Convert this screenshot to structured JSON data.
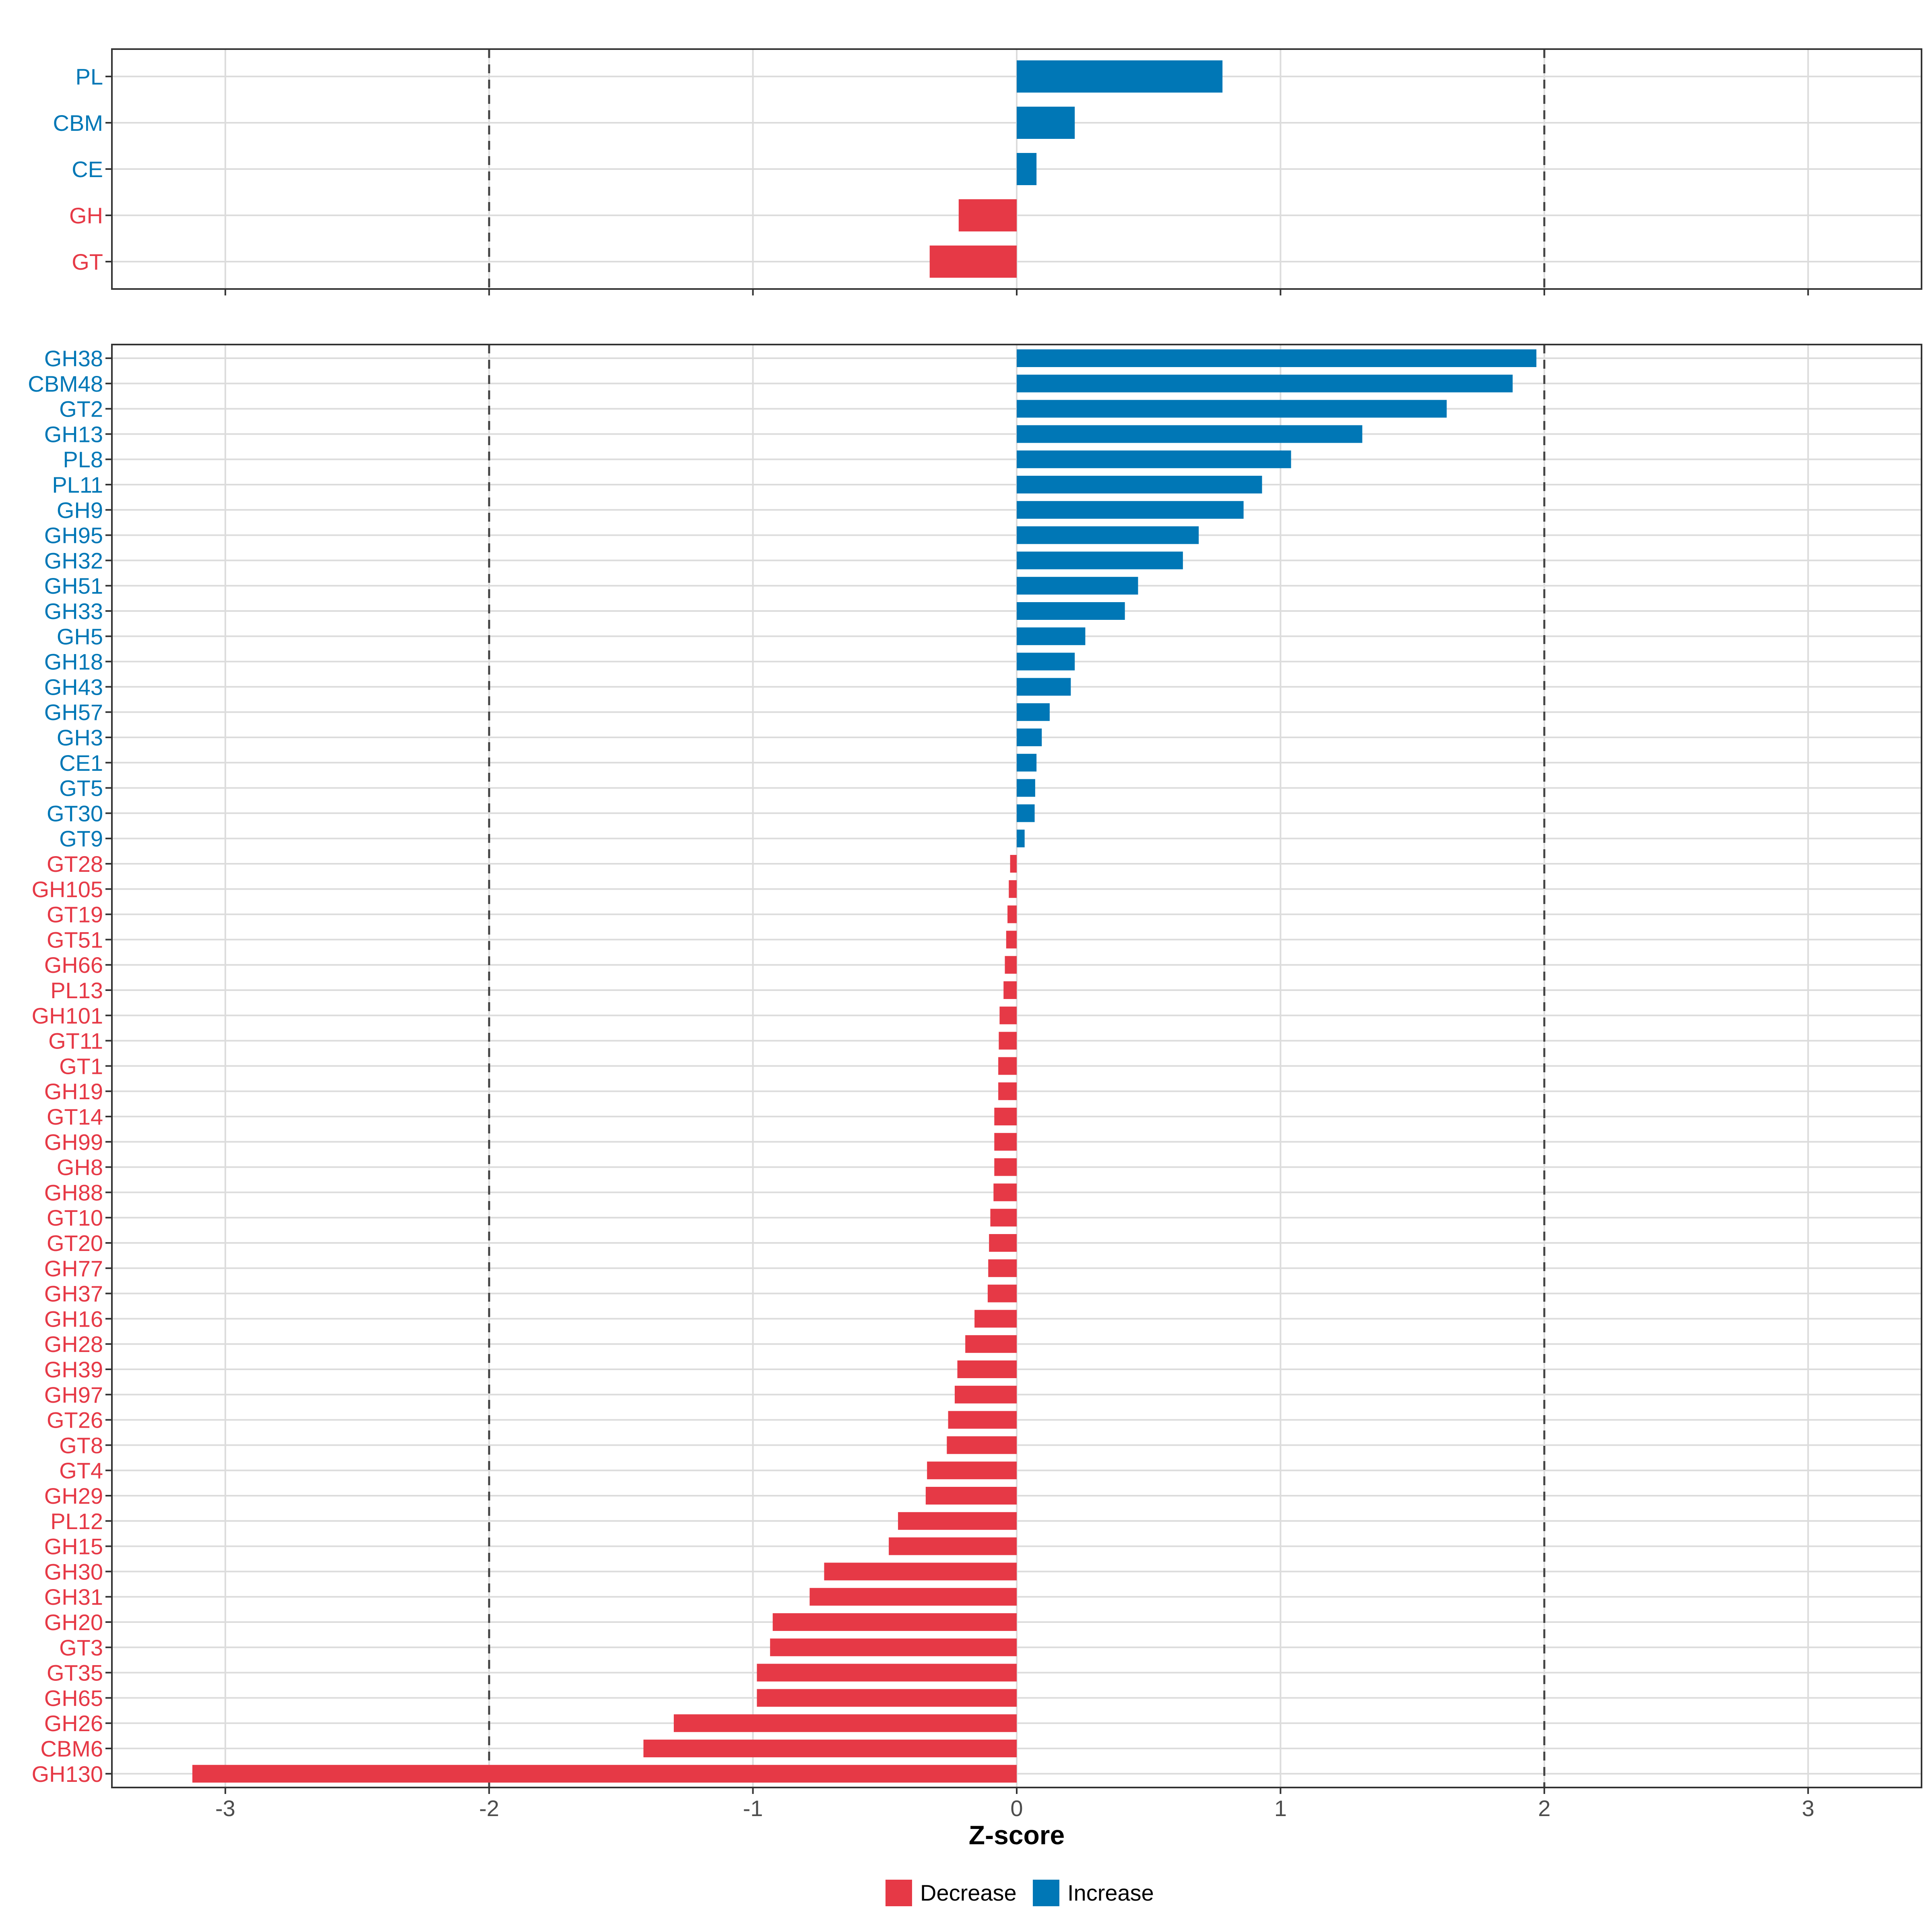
{
  "chart_data": {
    "type": "bar",
    "orientation": "horizontal",
    "xlabel": "Z-score",
    "xlim": [
      -3.43,
      3.43
    ],
    "xticks": [
      -3,
      -2,
      -1,
      0,
      1,
      2,
      3
    ],
    "xtick_labels": [
      "-3",
      "-2",
      "-1",
      "0",
      "1",
      "2",
      "3"
    ],
    "reference_lines": [
      -2,
      2
    ],
    "colors": {
      "Decrease": "#e63946",
      "Increase": "#0077b6"
    },
    "legend": {
      "position": "bottom",
      "entries": [
        "Decrease",
        "Increase"
      ]
    },
    "panels": [
      {
        "name": "class",
        "categories": [
          "PL",
          "CBM",
          "CE",
          "GH",
          "GT"
        ],
        "values": [
          0.78,
          0.22,
          0.075,
          -0.22,
          -0.33
        ],
        "groups": [
          "Increase",
          "Increase",
          "Increase",
          "Decrease",
          "Decrease"
        ]
      },
      {
        "name": "family",
        "categories": [
          "GH38",
          "CBM48",
          "GT2",
          "GH13",
          "PL8",
          "PL11",
          "GH9",
          "GH95",
          "GH32",
          "GH51",
          "GH33",
          "GH5",
          "GH18",
          "GH43",
          "GH57",
          "GH3",
          "CE1",
          "GT5",
          "GT30",
          "GT9",
          "GT28",
          "GH105",
          "GT19",
          "GT51",
          "GH66",
          "PL13",
          "GH101",
          "GT11",
          "GT1",
          "GH19",
          "GT14",
          "GH99",
          "GH8",
          "GH88",
          "GT10",
          "GT20",
          "GH77",
          "GH37",
          "GH16",
          "GH28",
          "GH39",
          "GH97",
          "GT26",
          "GT8",
          "GT4",
          "GH29",
          "PL12",
          "GH15",
          "GH30",
          "GH31",
          "GH20",
          "GT3",
          "GT35",
          "GH65",
          "GH26",
          "CBM6",
          "GH130"
        ],
        "values": [
          1.97,
          1.88,
          1.63,
          1.31,
          1.04,
          0.93,
          0.86,
          0.69,
          0.63,
          0.46,
          0.41,
          0.26,
          0.22,
          0.205,
          0.125,
          0.095,
          0.075,
          0.07,
          0.068,
          0.03,
          -0.025,
          -0.03,
          -0.035,
          -0.04,
          -0.045,
          -0.05,
          -0.065,
          -0.068,
          -0.07,
          -0.07,
          -0.085,
          -0.085,
          -0.085,
          -0.088,
          -0.1,
          -0.105,
          -0.108,
          -0.11,
          -0.16,
          -0.195,
          -0.225,
          -0.235,
          -0.26,
          -0.265,
          -0.34,
          -0.345,
          -0.45,
          -0.485,
          -0.73,
          -0.785,
          -0.925,
          -0.935,
          -0.985,
          -0.985,
          -1.3,
          -1.415,
          -3.125
        ],
        "groups": [
          "Increase",
          "Increase",
          "Increase",
          "Increase",
          "Increase",
          "Increase",
          "Increase",
          "Increase",
          "Increase",
          "Increase",
          "Increase",
          "Increase",
          "Increase",
          "Increase",
          "Increase",
          "Increase",
          "Increase",
          "Increase",
          "Increase",
          "Increase",
          "Decrease",
          "Decrease",
          "Decrease",
          "Decrease",
          "Decrease",
          "Decrease",
          "Decrease",
          "Decrease",
          "Decrease",
          "Decrease",
          "Decrease",
          "Decrease",
          "Decrease",
          "Decrease",
          "Decrease",
          "Decrease",
          "Decrease",
          "Decrease",
          "Decrease",
          "Decrease",
          "Decrease",
          "Decrease",
          "Decrease",
          "Decrease",
          "Decrease",
          "Decrease",
          "Decrease",
          "Decrease",
          "Decrease",
          "Decrease",
          "Decrease",
          "Decrease",
          "Decrease",
          "Decrease",
          "Decrease",
          "Decrease",
          "Decrease"
        ]
      }
    ]
  }
}
